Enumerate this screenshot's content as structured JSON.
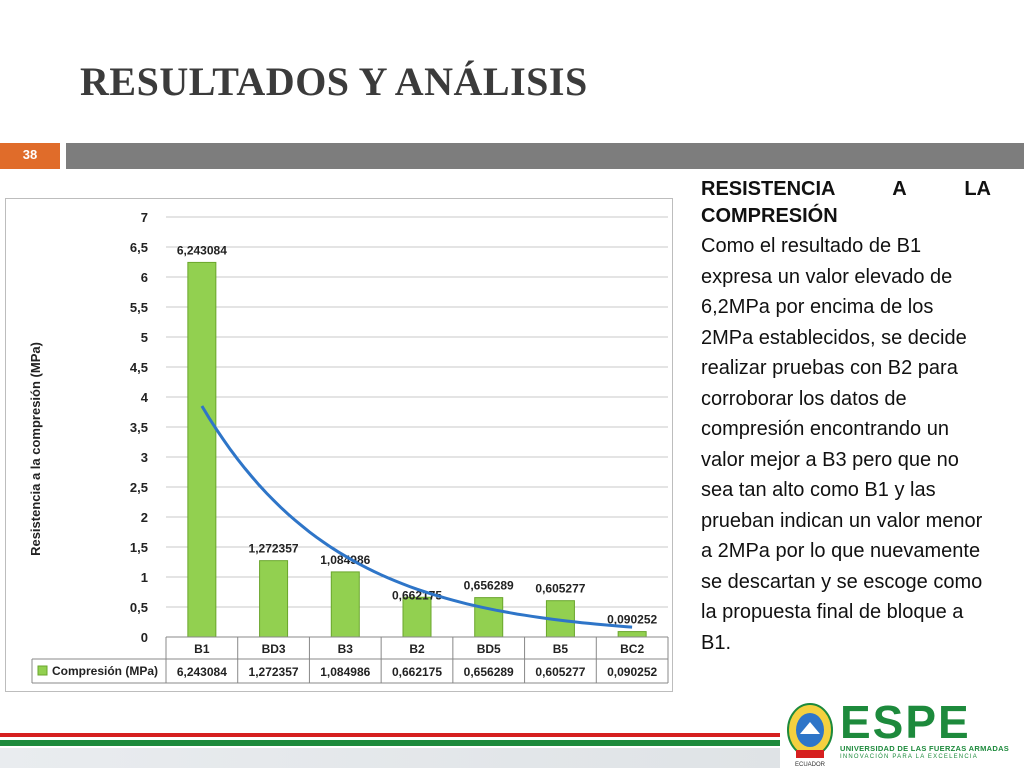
{
  "slide": {
    "title": "RESULTADOS Y ANÁLISIS",
    "number": "38"
  },
  "text_panel": {
    "heading_line1": "RESISTENCIA A LA",
    "heading_line2": "COMPRESIÓN",
    "body": "Como el resultado de B1 expresa un valor elevado de 6,2MPa por encima de los 2MPa establecidos, se decide realizar pruebas con B2 para corroborar los datos de compresión encontrando un valor mejor a B3 pero que no sea tan alto como B1 y las prueban indican un valor menor a 2MPa por lo que nuevamente se descartan y se escoge como la propuesta final de bloque a B1."
  },
  "logo": {
    "word": "ESPE",
    "line1": "UNIVERSIDAD DE LAS FUERZAS ARMADAS",
    "line2": "INNOVACIÓN PARA LA EXCELENCIA",
    "crest_label": "ECUADOR"
  },
  "colors": {
    "bar": "#92d050",
    "bar_border": "#6aa62c",
    "trend": "#2e75c8",
    "accent_orange": "#e06c2a",
    "header_gray": "#7d7d7d",
    "brand_green": "#1d8a3c",
    "brand_red": "#d6201f"
  },
  "chart_data": {
    "type": "bar",
    "ylabel": "Resistencia a la compresión (MPa)",
    "xlabel": "",
    "ylim": [
      0,
      7
    ],
    "ytick_labels": [
      "0",
      "0,5",
      "1",
      "1,5",
      "2",
      "2,5",
      "3",
      "3,5",
      "4",
      "4,5",
      "5",
      "5,5",
      "6",
      "6,5",
      "7"
    ],
    "ytick_values": [
      0,
      0.5,
      1,
      1.5,
      2,
      2.5,
      3,
      3.5,
      4,
      4.5,
      5,
      5.5,
      6,
      6.5,
      7
    ],
    "categories": [
      "B1",
      "BD3",
      "B3",
      "B2",
      "BD5",
      "B5",
      "BC2"
    ],
    "series": [
      {
        "name": "Compresión (MPa)",
        "values": [
          6.243084,
          1.272357,
          1.084986,
          0.662175,
          0.656289,
          0.605277,
          0.090252
        ],
        "labels": [
          "6,243084",
          "1,272357",
          "1,084986",
          "0,662175",
          "0,656289",
          "0,605277",
          "0,090252"
        ]
      }
    ],
    "trendline": {
      "type": "exponential"
    },
    "grid": true,
    "legend": "data-table"
  }
}
